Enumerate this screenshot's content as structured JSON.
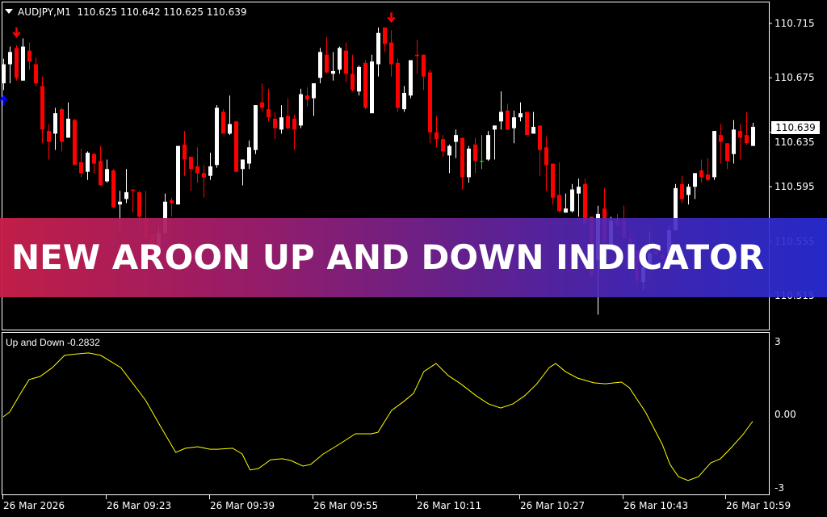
{
  "header": {
    "symbol": "AUDJPY,M1",
    "ohlc": "110.625 110.642 110.625 110.639"
  },
  "banner": {
    "text": "NEW AROON UP AND DOWN INDICATOR"
  },
  "colors": {
    "bull": "#ffffff",
    "bear": "#ff0000",
    "doji": "#00ff00",
    "indicator": "#ffff00",
    "sell_arrow": "#ff0000",
    "buy_arrow": "#0000ff",
    "background": "#000000"
  },
  "chart_data": [
    {
      "type": "candlestick",
      "symbol": "AUDJPY",
      "timeframe": "M1",
      "price_axis": {
        "ticks": [
          "110.715",
          "110.675",
          "110.635",
          "110.595",
          "110.555",
          "110.515"
        ],
        "current_price": "110.639"
      },
      "time_axis": {
        "labels": [
          "26 Mar 2026",
          "26 Mar 09:23",
          "26 Mar 09:39",
          "26 Mar 09:55",
          "26 Mar 10:11",
          "26 Mar 10:27",
          "26 Mar 10:43",
          "26 Mar 10:59"
        ]
      },
      "ohlc_fields": [
        "open",
        "high",
        "low",
        "close"
      ],
      "candles": [
        [
          110.671,
          110.689,
          110.666,
          110.685
        ],
        [
          110.685,
          110.698,
          110.671,
          110.694
        ],
        [
          110.697,
          110.699,
          110.673,
          110.675
        ],
        [
          110.673,
          110.704,
          110.673,
          110.698
        ],
        [
          110.695,
          110.701,
          110.681,
          110.687
        ],
        [
          110.685,
          110.69,
          110.669,
          110.671
        ],
        [
          110.669,
          110.676,
          110.627,
          110.637
        ],
        [
          110.636,
          110.641,
          110.615,
          110.628
        ],
        [
          110.634,
          110.653,
          110.622,
          110.649
        ],
        [
          110.652,
          110.653,
          110.621,
          110.628
        ],
        [
          110.631,
          110.657,
          110.631,
          110.645
        ],
        [
          110.644,
          110.645,
          110.611,
          110.611
        ],
        [
          110.613,
          110.623,
          110.602,
          110.605
        ],
        [
          110.606,
          110.621,
          110.6,
          110.62
        ],
        [
          110.619,
          110.62,
          110.605,
          110.612
        ],
        [
          110.614,
          110.625,
          110.596,
          110.596
        ],
        [
          110.599,
          110.615,
          110.598,
          110.608
        ],
        [
          110.607,
          110.608,
          110.579,
          110.58
        ],
        [
          110.582,
          110.592,
          110.563,
          110.584
        ],
        [
          110.586,
          110.608,
          110.583,
          110.591
        ],
        [
          110.593,
          110.593,
          110.576,
          110.592
        ],
        [
          110.591,
          110.592,
          110.56,
          110.573
        ],
        [
          110.572,
          110.592,
          110.558,
          110.558
        ],
        [
          110.56,
          110.56,
          110.544,
          110.548
        ],
        [
          110.551,
          110.566,
          110.551,
          110.561
        ],
        [
          110.561,
          110.59,
          110.561,
          110.584
        ],
        [
          110.585,
          110.587,
          110.573,
          110.583
        ],
        [
          110.582,
          110.625,
          110.582,
          110.625
        ],
        [
          110.626,
          110.636,
          110.603,
          110.615
        ],
        [
          110.617,
          110.617,
          110.592,
          110.608
        ],
        [
          110.61,
          110.624,
          110.598,
          110.605
        ],
        [
          110.605,
          110.611,
          110.587,
          110.602
        ],
        [
          110.603,
          110.62,
          110.6,
          110.61
        ],
        [
          110.611,
          110.655,
          110.609,
          110.653
        ],
        [
          110.65,
          110.652,
          110.634,
          110.634
        ],
        [
          110.634,
          110.662,
          110.633,
          110.641
        ],
        [
          110.643,
          110.643,
          110.606,
          110.606
        ],
        [
          110.608,
          110.615,
          110.596,
          110.615
        ],
        [
          110.612,
          110.629,
          110.608,
          110.624
        ],
        [
          110.622,
          110.655,
          110.619,
          110.655
        ],
        [
          110.657,
          110.671,
          110.65,
          110.653
        ],
        [
          110.652,
          110.667,
          110.643,
          110.646
        ],
        [
          110.645,
          110.65,
          110.63,
          110.638
        ],
        [
          110.637,
          110.655,
          110.634,
          110.646
        ],
        [
          110.647,
          110.66,
          110.637,
          110.638
        ],
        [
          110.645,
          110.648,
          110.622,
          110.637
        ],
        [
          110.64,
          110.667,
          110.638,
          110.663
        ],
        [
          110.662,
          110.668,
          110.654,
          110.659
        ],
        [
          110.66,
          110.671,
          110.647,
          110.671
        ],
        [
          110.675,
          110.697,
          110.671,
          110.694
        ],
        [
          110.692,
          110.705,
          110.678,
          110.679
        ],
        [
          110.678,
          110.694,
          110.673,
          110.68
        ],
        [
          110.681,
          110.698,
          110.678,
          110.697
        ],
        [
          110.695,
          110.701,
          110.672,
          110.678
        ],
        [
          110.678,
          110.692,
          110.665,
          110.666
        ],
        [
          110.665,
          110.684,
          110.662,
          110.683
        ],
        [
          110.686,
          110.688,
          110.652,
          110.653
        ],
        [
          110.649,
          110.692,
          110.649,
          110.687
        ],
        [
          110.685,
          110.712,
          110.676,
          110.708
        ],
        [
          110.712,
          110.712,
          110.694,
          110.7
        ],
        [
          110.701,
          110.71,
          110.676,
          110.685
        ],
        [
          110.686,
          110.689,
          110.65,
          110.653
        ],
        [
          110.652,
          110.669,
          110.65,
          110.664
        ],
        [
          110.662,
          110.688,
          110.66,
          110.688
        ],
        [
          110.692,
          110.703,
          110.678,
          110.691
        ],
        [
          110.692,
          110.692,
          110.666,
          110.676
        ],
        [
          110.679,
          110.681,
          110.627,
          110.635
        ],
        [
          110.635,
          110.647,
          110.624,
          110.63
        ],
        [
          110.63,
          110.633,
          110.617,
          110.621
        ],
        [
          110.618,
          110.626,
          110.605,
          110.625
        ],
        [
          110.628,
          110.637,
          110.616,
          110.633
        ],
        [
          110.631,
          110.631,
          110.593,
          110.602
        ],
        [
          110.602,
          110.625,
          110.598,
          110.623
        ],
        [
          110.626,
          110.631,
          110.605,
          110.614
        ],
        [
          110.614,
          110.633,
          110.608,
          110.614
        ],
        [
          110.615,
          110.636,
          110.614,
          110.633
        ],
        [
          110.637,
          110.64,
          110.615,
          110.64
        ],
        [
          110.643,
          110.665,
          110.637,
          110.65
        ],
        [
          110.651,
          110.656,
          110.637,
          110.637
        ],
        [
          110.638,
          110.651,
          110.627,
          110.646
        ],
        [
          110.646,
          110.657,
          110.643,
          110.649
        ],
        [
          110.65,
          110.65,
          110.633,
          110.633
        ],
        [
          110.634,
          110.65,
          110.634,
          110.639
        ],
        [
          110.64,
          110.64,
          110.603,
          110.622
        ],
        [
          110.624,
          110.632,
          110.592,
          110.611
        ],
        [
          110.612,
          110.612,
          110.582,
          110.587
        ],
        [
          110.589,
          110.613,
          110.576,
          110.577
        ],
        [
          110.576,
          110.59,
          110.576,
          110.579
        ],
        [
          110.577,
          110.597,
          110.576,
          110.593
        ],
        [
          110.59,
          110.601,
          110.573,
          110.595
        ],
        [
          110.597,
          110.601,
          110.566,
          110.568
        ],
        [
          110.573,
          110.573,
          110.529,
          110.529
        ],
        [
          110.541,
          110.581,
          110.501,
          110.575
        ],
        [
          110.579,
          110.594,
          110.554,
          110.554
        ],
        [
          110.552,
          110.573,
          110.552,
          110.57
        ],
        [
          110.571,
          110.575,
          110.566,
          110.567
        ],
        [
          110.57,
          110.581,
          110.557,
          110.557
        ],
        [
          110.557,
          110.563,
          110.544,
          110.544
        ],
        [
          110.548,
          110.548,
          110.521,
          110.526
        ],
        [
          110.525,
          110.536,
          110.519,
          110.536
        ],
        [
          110.535,
          110.562,
          110.535,
          110.546
        ],
        [
          110.548,
          110.551,
          110.545,
          110.545
        ],
        [
          110.545,
          110.548,
          110.542,
          110.542
        ],
        [
          110.542,
          110.566,
          110.542,
          110.563
        ],
        [
          110.563,
          110.597,
          110.563,
          110.594
        ],
        [
          110.597,
          110.603,
          110.583,
          110.586
        ],
        [
          110.589,
          110.597,
          110.582,
          110.595
        ],
        [
          110.595,
          110.605,
          110.586,
          110.605
        ],
        [
          110.607,
          110.615,
          110.598,
          110.602
        ],
        [
          110.604,
          110.616,
          110.599,
          110.6
        ],
        [
          110.602,
          110.636,
          110.6,
          110.636
        ],
        [
          110.633,
          110.641,
          110.612,
          110.628
        ],
        [
          110.627,
          110.627,
          110.608,
          110.614
        ],
        [
          110.619,
          110.644,
          110.612,
          110.637
        ],
        [
          110.636,
          110.641,
          110.615,
          110.631
        ],
        [
          110.633,
          110.65,
          110.626,
          110.627
        ],
        [
          110.625,
          110.642,
          110.625,
          110.639
        ]
      ],
      "signals": [
        {
          "candle": 3,
          "type": "sell"
        },
        {
          "candle": 61,
          "type": "sell"
        },
        {
          "candle": 1,
          "type": "buy"
        },
        {
          "candle": 26,
          "type": "buy"
        },
        {
          "candle": 102,
          "type": "buy"
        }
      ]
    },
    {
      "type": "line",
      "title": "Up and Down",
      "last_value": "-0.2832",
      "y_ticks": [
        "3",
        "0.00",
        "-3"
      ],
      "ylim": [
        -3,
        3
      ],
      "points": [
        [
          1,
          -0.1
        ],
        [
          2,
          0.1
        ],
        [
          3.6,
          0.82
        ],
        [
          5,
          1.42
        ],
        [
          6.7,
          1.55
        ],
        [
          8.6,
          1.91
        ],
        [
          10.5,
          2.41
        ],
        [
          12.4,
          2.47
        ],
        [
          14.2,
          2.51
        ],
        [
          16.1,
          2.41
        ],
        [
          19.2,
          1.91
        ],
        [
          21.1,
          1.25
        ],
        [
          23,
          0.59
        ],
        [
          25.5,
          -0.56
        ],
        [
          27.7,
          -1.55
        ],
        [
          29.2,
          -1.38
        ],
        [
          31.1,
          -1.32
        ],
        [
          33,
          -1.42
        ],
        [
          34.2,
          -1.42
        ],
        [
          36.5,
          -1.38
        ],
        [
          38,
          -1.62
        ],
        [
          39.2,
          -2.27
        ],
        [
          40.5,
          -2.21
        ],
        [
          42.4,
          -1.85
        ],
        [
          44.2,
          -1.81
        ],
        [
          45.5,
          -1.88
        ],
        [
          47.4,
          -2.11
        ],
        [
          48.6,
          -2.04
        ],
        [
          50.5,
          -1.62
        ],
        [
          53,
          -1.22
        ],
        [
          55.5,
          -0.79
        ],
        [
          58,
          -0.79
        ],
        [
          59,
          -0.73
        ],
        [
          61.1,
          0.16
        ],
        [
          63,
          0.53
        ],
        [
          64.5,
          0.86
        ],
        [
          66.1,
          1.75
        ],
        [
          68,
          2.08
        ],
        [
          69.9,
          1.58
        ],
        [
          71.8,
          1.25
        ],
        [
          74.2,
          0.76
        ],
        [
          76.1,
          0.43
        ],
        [
          78,
          0.26
        ],
        [
          79.9,
          0.43
        ],
        [
          81.7,
          0.76
        ],
        [
          83.6,
          1.25
        ],
        [
          85.5,
          1.91
        ],
        [
          86.5,
          2.08
        ],
        [
          88,
          1.75
        ],
        [
          89.9,
          1.48
        ],
        [
          92.4,
          1.29
        ],
        [
          94.2,
          1.25
        ],
        [
          96.7,
          1.32
        ],
        [
          97.9,
          1.09
        ],
        [
          100.4,
          0.1
        ],
        [
          103,
          -1.22
        ],
        [
          104.2,
          -2.04
        ],
        [
          105.5,
          -2.54
        ],
        [
          107,
          -2.7
        ],
        [
          108.6,
          -2.54
        ],
        [
          110.5,
          -1.98
        ],
        [
          112,
          -1.81
        ],
        [
          113.6,
          -1.38
        ],
        [
          115.5,
          -0.82
        ],
        [
          117,
          -0.28
        ]
      ]
    }
  ]
}
